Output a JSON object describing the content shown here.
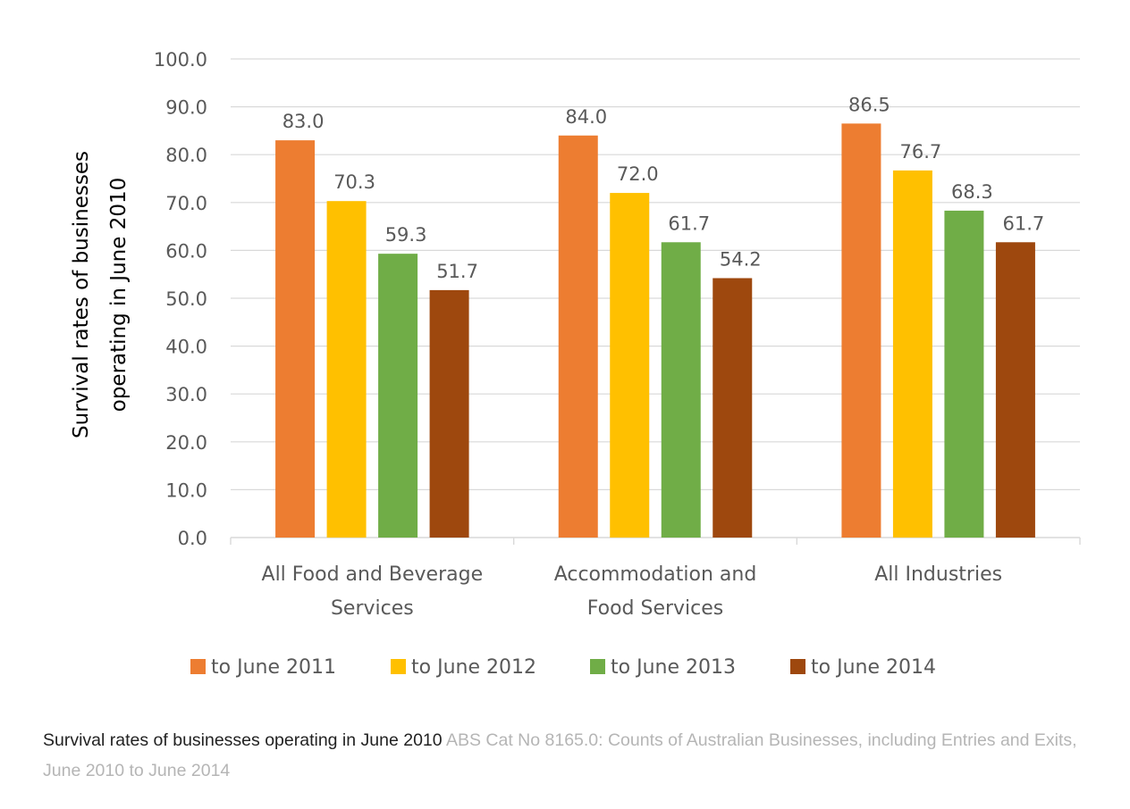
{
  "chart_data": {
    "type": "bar",
    "title": "",
    "ylabel": "Survival rates of businesses operating in June 2010",
    "xlabel": "",
    "ylim": [
      0,
      100
    ],
    "yticks": [
      "0.0",
      "10.0",
      "20.0",
      "30.0",
      "40.0",
      "50.0",
      "60.0",
      "70.0",
      "80.0",
      "90.0",
      "100.0"
    ],
    "categories": [
      "All Food and Beverage Services",
      "Accommodation and Food Services",
      "All Industries"
    ],
    "category_lines": [
      [
        "All Food and Beverage",
        "Services"
      ],
      [
        "Accommodation and",
        "Food Services"
      ],
      [
        "All Industries"
      ]
    ],
    "series": [
      {
        "name": "to June 2011",
        "color": "#ED7D31",
        "values": [
          83.0,
          84.0,
          86.5
        ]
      },
      {
        "name": "to June 2012",
        "color": "#FFC000",
        "values": [
          70.3,
          72.0,
          76.7
        ]
      },
      {
        "name": "to June 2013",
        "color": "#70AD47",
        "values": [
          59.3,
          61.7,
          68.3
        ]
      },
      {
        "name": "to June 2014",
        "color": "#9E480E",
        "values": [
          51.7,
          54.2,
          61.7
        ]
      }
    ],
    "data_labels": [
      [
        "83.0",
        "84.0",
        "86.5"
      ],
      [
        "70.3",
        "72.0",
        "76.7"
      ],
      [
        "59.3",
        "61.7",
        "68.3"
      ],
      [
        "51.7",
        "54.2",
        "61.7"
      ]
    ],
    "grid": true,
    "legend_position": "bottom"
  },
  "caption": {
    "title": "Survival rates of businesses operating in June 2010",
    "source": "ABS Cat No 8165.0: Counts of Australian Businesses, including Entries and Exits, June 2010 to June 2014"
  },
  "colors": {
    "grid": "#D9D9D9",
    "axis_text": "#595959",
    "ylabel_text": "#000000",
    "caption_title": "#222222",
    "caption_source": "#B5B5B5"
  }
}
